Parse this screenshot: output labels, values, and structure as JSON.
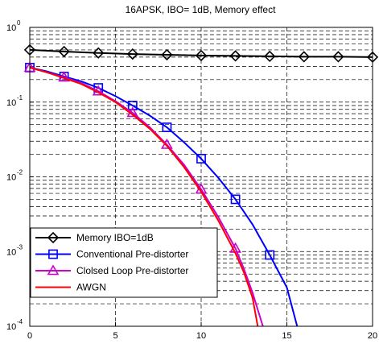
{
  "chart_data": {
    "type": "line",
    "title": "16APSK, IBO= 1dB, Memory effect",
    "xlabel": "",
    "ylabel": "",
    "xlim": [
      0,
      20
    ],
    "ylim": [
      0.0001,
      1
    ],
    "yscale": "log",
    "grid": true,
    "x_ticks": [
      "0",
      "5",
      "10",
      "15",
      "20"
    ],
    "y_ticks": [
      {
        "base": "10",
        "exp": "0"
      },
      {
        "base": "10",
        "exp": "-1"
      },
      {
        "base": "10",
        "exp": "-2"
      },
      {
        "base": "10",
        "exp": "-3"
      },
      {
        "base": "10",
        "exp": "-4"
      }
    ],
    "legend_position": "bottom-left",
    "series": [
      {
        "name": "Memory IBO=1dB",
        "color": "#000000",
        "marker": "diamond",
        "x": [
          0,
          2,
          4,
          6,
          8,
          10,
          12,
          14,
          16,
          18,
          20
        ],
        "y": [
          0.5,
          0.475,
          0.455,
          0.44,
          0.43,
          0.42,
          0.415,
          0.41,
          0.405,
          0.405,
          0.4
        ]
      },
      {
        "name": "Conventional Pre-distorter",
        "color": "#0000ff",
        "marker": "square",
        "x": [
          0,
          2,
          4,
          6,
          8,
          10,
          12,
          14
        ],
        "y": [
          0.29,
          0.22,
          0.155,
          0.09,
          0.046,
          0.0175,
          0.005,
          0.0009
        ],
        "curve_x": [
          0,
          1,
          2,
          3,
          4,
          5,
          6,
          7,
          8,
          9,
          10,
          11,
          12,
          13,
          14,
          15,
          15.6
        ],
        "curve_y": [
          0.29,
          0.258,
          0.22,
          0.19,
          0.155,
          0.12,
          0.09,
          0.066,
          0.046,
          0.029,
          0.0175,
          0.0097,
          0.005,
          0.0023,
          0.0009,
          0.00033,
          0.0001
        ]
      },
      {
        "name": "Closed Loop Pre-distorter",
        "color": "#cc00cc",
        "marker": "triangle",
        "x": [
          0,
          2,
          4,
          6,
          8,
          10,
          12
        ],
        "y": [
          0.29,
          0.215,
          0.14,
          0.072,
          0.027,
          0.0068,
          0.0011
        ],
        "curve_x": [
          0,
          1,
          2,
          3,
          4,
          5,
          6,
          7,
          8,
          9,
          10,
          11,
          12,
          12.5,
          13,
          13.6
        ],
        "curve_y": [
          0.29,
          0.25,
          0.215,
          0.18,
          0.14,
          0.103,
          0.072,
          0.046,
          0.027,
          0.0145,
          0.0068,
          0.0029,
          0.0011,
          0.00058,
          0.00028,
          0.0001
        ]
      },
      {
        "name": "AWGN",
        "color": "#ff0000",
        "marker": "none",
        "x": [
          0,
          1,
          2,
          3,
          4,
          5,
          6,
          7,
          8,
          9,
          10,
          11,
          12,
          12.5,
          13,
          13.3
        ],
        "y": [
          0.29,
          0.25,
          0.21,
          0.175,
          0.135,
          0.1,
          0.068,
          0.044,
          0.026,
          0.0135,
          0.0063,
          0.0026,
          0.00095,
          0.00052,
          0.00024,
          0.0001
        ]
      }
    ],
    "legend": [
      {
        "label": "Memory IBO=1dB",
        "color": "#000000",
        "marker": "diamond"
      },
      {
        "label": "Conventional Pre-distorter",
        "color": "#0000ff",
        "marker": "square"
      },
      {
        "label": "Clolsed Loop Pre-distorter",
        "color": "#cc00cc",
        "marker": "triangle"
      },
      {
        "label": "AWGN",
        "color": "#ff0000",
        "marker": "none"
      }
    ]
  }
}
